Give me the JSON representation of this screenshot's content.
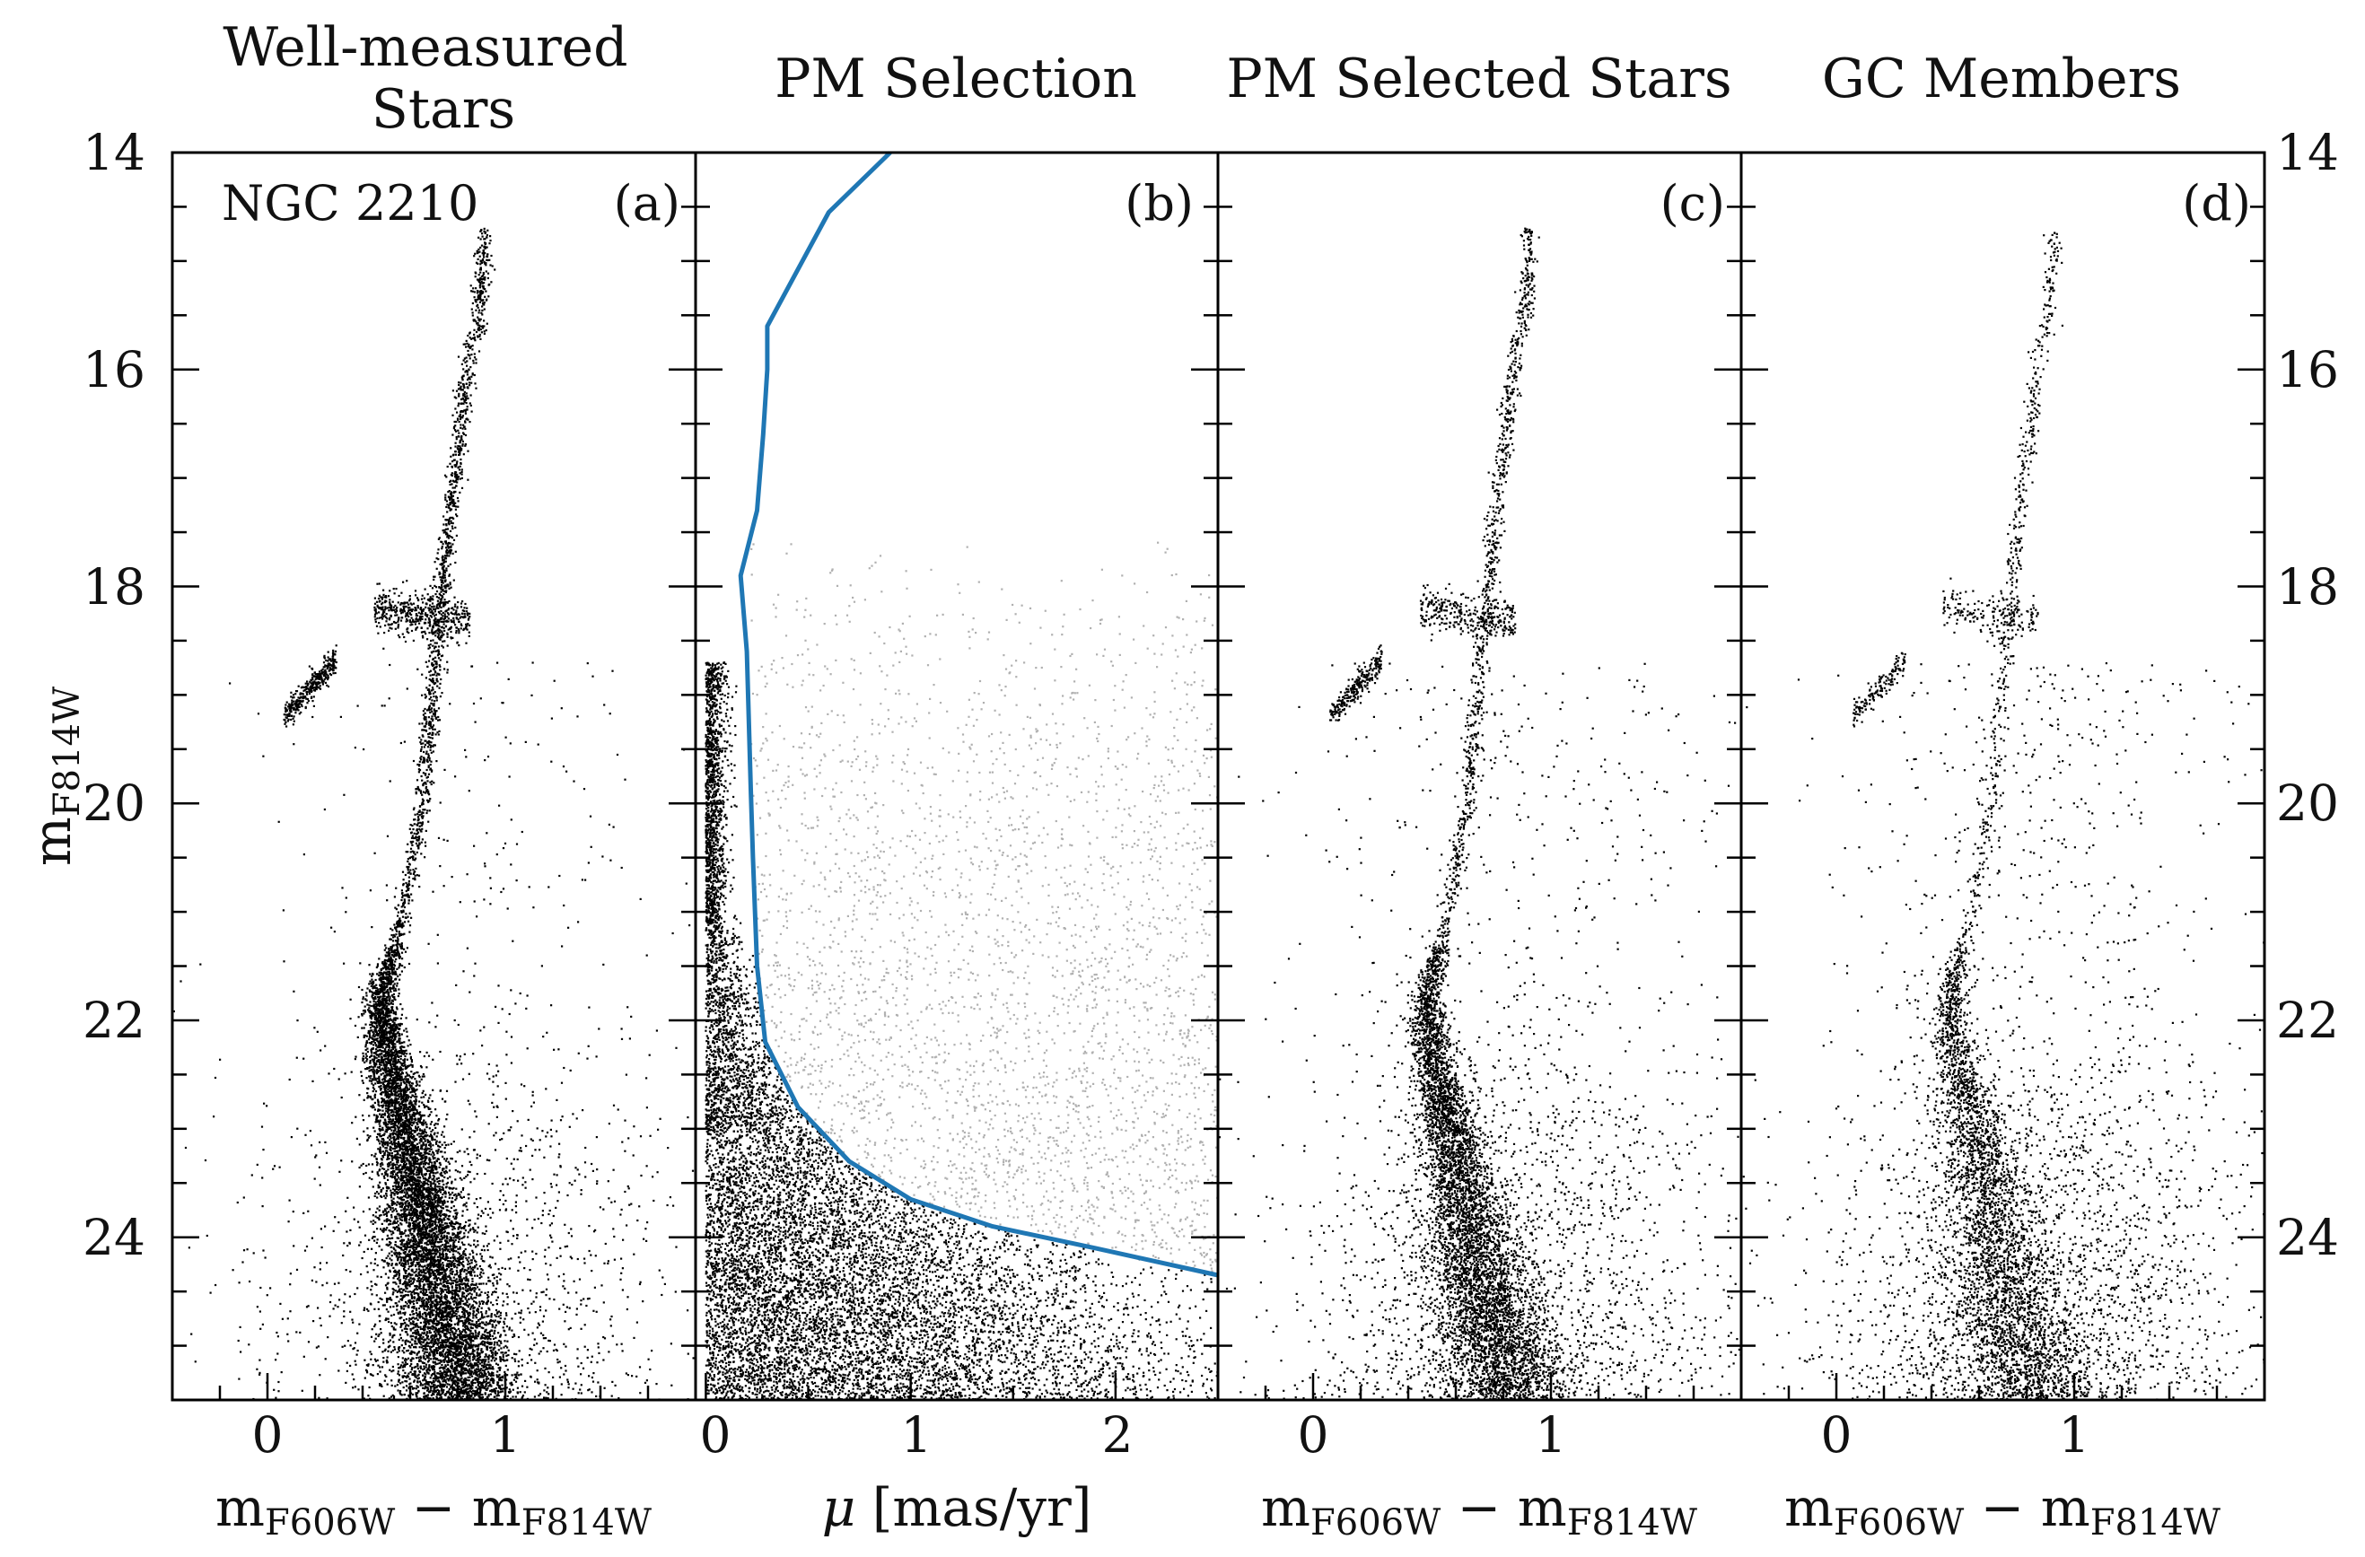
{
  "chart_data": [
    {
      "panel": "a",
      "type": "scatter",
      "title_lines": [
        "Well-measured",
        "Stars"
      ],
      "panel_label": "(a)",
      "annotation": "NGC 2210",
      "xlabel": {
        "main": "m",
        "sub1": "F606W",
        "minus": " − ",
        "main2": "m",
        "sub2": "F814W"
      },
      "ylabel": {
        "main": "m",
        "sub": "F814W"
      },
      "xlim": [
        -0.4,
        1.8
      ],
      "ylim": [
        25.5,
        14
      ],
      "xticks": [
        0,
        1
      ],
      "xtick_labels": [
        "0",
        "1"
      ],
      "yticks": [
        14,
        16,
        18,
        20,
        22,
        24
      ],
      "ytick_labels": [
        "14",
        "16",
        "18",
        "20",
        "22",
        "24"
      ],
      "series": [
        {
          "name": "well-measured stars",
          "color": "#000000",
          "n_points": 26000
        }
      ]
    },
    {
      "panel": "b",
      "type": "scatter",
      "title_lines": [
        "PM Selection"
      ],
      "panel_label": "(b)",
      "xlabel": {
        "mu": "μ",
        "rest": " [mas/yr]"
      },
      "xlim": [
        -0.05,
        2.5
      ],
      "ylim": [
        25.5,
        14
      ],
      "xticks": [
        0,
        1,
        2
      ],
      "xtick_labels": [
        "0",
        "1",
        "2"
      ],
      "series": [
        {
          "name": "PM selected",
          "color": "#000000",
          "n_points": 26000
        },
        {
          "name": "PM rejected",
          "color": "#aaaaaa",
          "n_points": 12000
        }
      ],
      "selection_line": {
        "color": "#1f77b4",
        "mu": [
          0.9,
          0.6,
          0.3,
          0.3,
          0.28,
          0.25,
          0.17,
          0.2,
          0.22,
          0.23,
          0.25,
          0.29,
          0.45,
          0.7,
          1.0,
          1.4,
          1.9,
          2.5
        ],
        "mag": [
          14.0,
          14.55,
          15.6,
          16.0,
          16.6,
          17.3,
          17.9,
          18.6,
          19.9,
          20.5,
          21.5,
          22.2,
          22.8,
          23.3,
          23.65,
          23.9,
          24.1,
          24.35
        ]
      }
    },
    {
      "panel": "c",
      "type": "scatter",
      "title_lines": [
        "PM Selected Stars"
      ],
      "panel_label": "(c)",
      "xlabel": {
        "main": "m",
        "sub1": "F606W",
        "minus": " − ",
        "main2": "m",
        "sub2": "F814W"
      },
      "xlim": [
        -0.4,
        1.8
      ],
      "ylim": [
        25.5,
        14
      ],
      "xticks": [
        0,
        1
      ],
      "xtick_labels": [
        "0",
        "1"
      ],
      "series": [
        {
          "name": "PM selected stars",
          "color": "#000000",
          "n_points": 20000
        }
      ]
    },
    {
      "panel": "d",
      "type": "scatter",
      "title_lines": [
        "GC Members"
      ],
      "panel_label": "(d)",
      "xlabel": {
        "main": "m",
        "sub1": "F606W",
        "minus": " − ",
        "main2": "m",
        "sub2": "F814W"
      },
      "xlim": [
        -0.4,
        1.8
      ],
      "ylim": [
        25.5,
        14
      ],
      "xticks": [
        0,
        1
      ],
      "xtick_labels": [
        "0",
        "1"
      ],
      "ytick_labels_right": [
        "14",
        "16",
        "18",
        "20",
        "22",
        "24"
      ],
      "series": [
        {
          "name": "GC members",
          "color": "#000000",
          "n_points": 15000
        }
      ]
    }
  ]
}
